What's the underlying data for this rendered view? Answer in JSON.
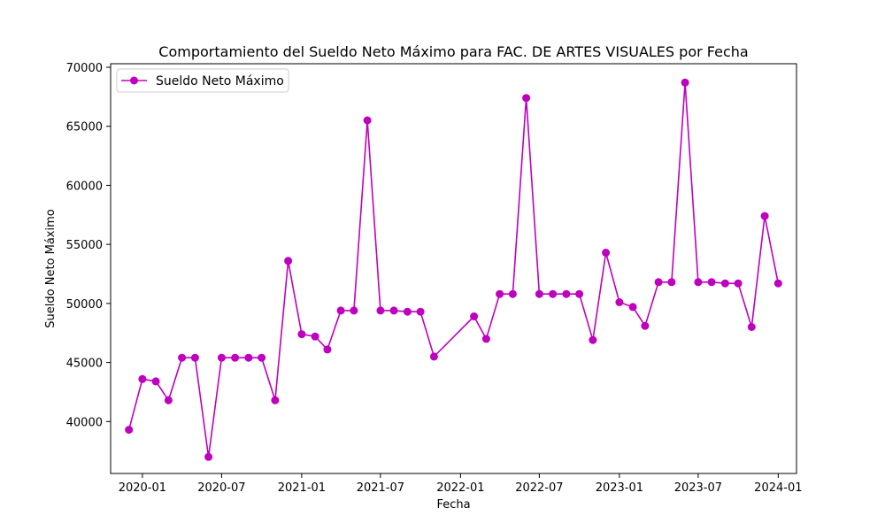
{
  "chart_data": {
    "type": "line",
    "title": "Comportamiento del Sueldo Neto Máximo para FAC. DE ARTES VISUALES por Fecha",
    "xlabel": "Fecha",
    "ylabel": "Sueldo Neto Máximo",
    "ylim": [
      35600,
      70300
    ],
    "xlim": [
      "2019-10-20",
      "2024-02-12"
    ],
    "x_ticks": [
      "2020-01-01",
      "2020-07-01",
      "2021-01-01",
      "2021-07-01",
      "2022-01-01",
      "2022-07-01",
      "2023-01-01",
      "2023-07-01",
      "2024-01-01"
    ],
    "x_tick_labels": [
      "2020-01",
      "2020-07",
      "2021-01",
      "2021-07",
      "2022-01",
      "2022-07",
      "2023-01",
      "2023-07",
      "2024-01"
    ],
    "y_ticks": [
      40000,
      45000,
      50000,
      55000,
      60000,
      65000,
      70000
    ],
    "y_tick_labels": [
      "40000",
      "45000",
      "50000",
      "55000",
      "60000",
      "65000",
      "70000"
    ],
    "grid": false,
    "legend_position": "upper-left",
    "series": [
      {
        "name": "Sueldo Neto Máximo",
        "color": "#bf00bf",
        "marker": "circle",
        "x": [
          "2019-12-01",
          "2020-01-01",
          "2020-02-01",
          "2020-03-01",
          "2020-04-01",
          "2020-05-01",
          "2020-06-01",
          "2020-07-01",
          "2020-08-01",
          "2020-09-01",
          "2020-10-01",
          "2020-11-01",
          "2020-12-01",
          "2021-01-01",
          "2021-02-01",
          "2021-03-01",
          "2021-04-01",
          "2021-05-01",
          "2021-06-01",
          "2021-07-01",
          "2021-08-01",
          "2021-09-01",
          "2021-10-01",
          "2021-11-01",
          "2022-02-01",
          "2022-03-01",
          "2022-04-01",
          "2022-05-01",
          "2022-06-01",
          "2022-07-01",
          "2022-08-01",
          "2022-09-01",
          "2022-10-01",
          "2022-11-01",
          "2022-12-01",
          "2023-01-01",
          "2023-02-01",
          "2023-03-01",
          "2023-04-01",
          "2023-05-01",
          "2023-06-01",
          "2023-07-01",
          "2023-08-01",
          "2023-09-01",
          "2023-10-01",
          "2023-11-01",
          "2023-12-01",
          "2024-01-01"
        ],
        "values": [
          39300,
          43600,
          43400,
          41800,
          45400,
          45400,
          37000,
          45400,
          45400,
          45400,
          45400,
          41800,
          53600,
          47400,
          47200,
          46100,
          49400,
          49400,
          65500,
          49400,
          49400,
          49300,
          49300,
          45500,
          48900,
          47000,
          50800,
          50800,
          67400,
          50800,
          50800,
          50800,
          50800,
          46900,
          54300,
          50100,
          49700,
          48100,
          51800,
          51800,
          68700,
          51800,
          51800,
          51700,
          51700,
          48000,
          57400,
          51700
        ]
      }
    ]
  }
}
